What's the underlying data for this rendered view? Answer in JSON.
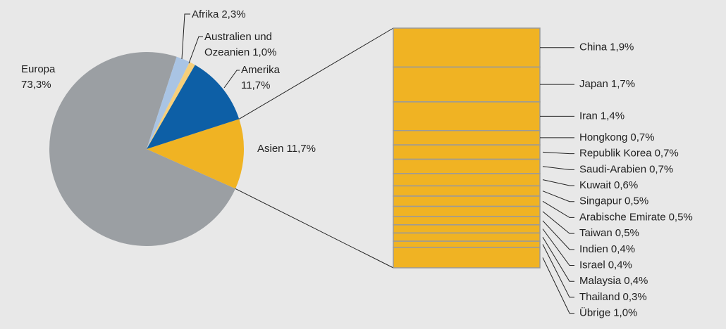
{
  "chart_data": {
    "type": "pie",
    "categories": [
      "Asien",
      "Europa",
      "Afrika",
      "Australien und Ozeanien",
      "Amerika"
    ],
    "values": [
      11.7,
      73.3,
      2.3,
      1.0,
      11.7
    ],
    "value_labels": [
      "11,7%",
      "73,3%",
      "2,3%",
      "1,0%",
      "11,7%"
    ],
    "colors": [
      "#f0b323",
      "#9b9fa3",
      "#a9c4e4",
      "#f6cf7a",
      "#0d5fa6"
    ],
    "breakdown": {
      "type": "bar",
      "categories": [
        "China",
        "Japan",
        "Iran",
        "Hongkong",
        "Republik Korea",
        "Saudi-Arabien",
        "Kuwait",
        "Singapur",
        "Arabische Emirate",
        "Taiwan",
        "Indien",
        "Israel",
        "Malaysia",
        "Thailand",
        "Übrige"
      ],
      "values": [
        1.9,
        1.7,
        1.4,
        0.7,
        0.7,
        0.7,
        0.6,
        0.5,
        0.5,
        0.5,
        0.4,
        0.4,
        0.4,
        0.3,
        1.0
      ],
      "value_labels": [
        "1,9%",
        "1,7%",
        "1,4%",
        "0,7%",
        "0,7%",
        "0,7%",
        "0,6%",
        "0,5%",
        "0,5%",
        "0,5%",
        "0,4%",
        "0,4%",
        "0,4%",
        "0,3%",
        "1,0%"
      ],
      "color": "#f0b323"
    }
  }
}
